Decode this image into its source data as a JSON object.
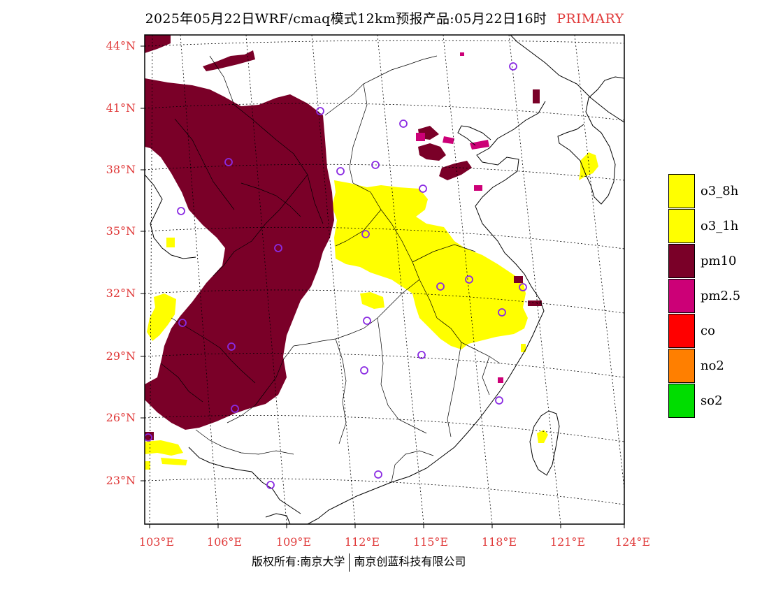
{
  "title": {
    "main": "2025年05月22日WRF/cmaq模式12km预报产品:05月22日16时",
    "tag": "PRIMARY"
  },
  "map": {
    "lat_labels": [
      "44°N",
      "41°N",
      "38°N",
      "35°N",
      "32°N",
      "29°N",
      "26°N",
      "23°N"
    ],
    "lon_labels": [
      "103°E",
      "106°E",
      "109°E",
      "112°E",
      "115°E",
      "118°E",
      "121°E",
      "124°E"
    ]
  },
  "legend": {
    "items": [
      {
        "label": "o3_8h",
        "color": "#ffff00"
      },
      {
        "label": "o3_1h",
        "color": "#ffff00"
      },
      {
        "label": "pm10",
        "color": "#7a0028"
      },
      {
        "label": "pm2.5",
        "color": "#cc0077"
      },
      {
        "label": "co",
        "color": "#ff0000"
      },
      {
        "label": "no2",
        "color": "#ff7f00"
      },
      {
        "label": "so2",
        "color": "#00dd00"
      }
    ]
  },
  "colors": {
    "pm10": "#7a0028",
    "pm25": "#cc0077",
    "o3": "#ffff00",
    "station": "#8a2be2",
    "label": "#e03a3a"
  },
  "footer": {
    "copyright": "版权所有:南京大学",
    "company": "南京创蓝科技有限公司"
  }
}
